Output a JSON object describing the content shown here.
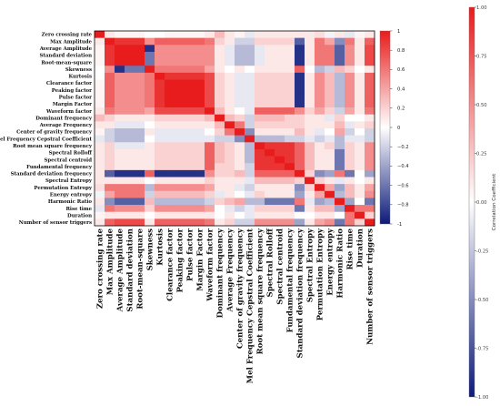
{
  "chart_data": {
    "type": "heatmap",
    "labels": [
      "Zero crossing rate",
      "Max Amplitude",
      "Average Amplitude",
      "Standard deviation",
      "Root-mean-square",
      "Skewness",
      "Kurtosis",
      "Clearance factor",
      "Peaking factor",
      "Pulse factor",
      "Margin Factor",
      "Waveform factor",
      "Dominant frequency",
      "Average Frequency",
      "Center of gravity frequency",
      "Mel Frequency Cepstral Coefficient",
      "Root mean square frequency",
      "Spectral Rolloff",
      "Spectral centroid",
      "Fundamental frequency",
      "Standard deviation frequency",
      "Spectral Entropy",
      "Permutation Entropy",
      "Energy entropy",
      "Harmonic Ratio",
      "Rise time",
      "Duration",
      "Number of sensor triggers"
    ],
    "matrix": [
      [
        1.0,
        0.1,
        0.05,
        0.05,
        0.05,
        0.0,
        0.0,
        0.05,
        0.05,
        0.05,
        0.05,
        0.1,
        0.3,
        0.1,
        0.05,
        -0.1,
        0.1,
        0.1,
        0.1,
        0.1,
        0.1,
        0.1,
        0.15,
        -0.05,
        0.1,
        -0.1,
        0.05,
        0.1
      ],
      [
        0.1,
        1.0,
        0.9,
        0.9,
        0.9,
        0.5,
        0.7,
        0.7,
        0.7,
        0.7,
        0.7,
        0.6,
        0.2,
        0.1,
        -0.2,
        -0.2,
        0.2,
        0.2,
        0.2,
        0.2,
        -0.7,
        0.1,
        0.6,
        0.4,
        -0.5,
        0.6,
        0.1,
        0.7
      ],
      [
        0.05,
        0.9,
        1.0,
        1.0,
        1.0,
        -0.9,
        0.5,
        0.5,
        0.5,
        0.5,
        0.5,
        0.5,
        0.1,
        -0.1,
        -0.3,
        -0.3,
        -0.1,
        0.1,
        0.1,
        0.1,
        -0.9,
        0.1,
        0.6,
        0.6,
        -0.7,
        0.5,
        0.1,
        0.8
      ],
      [
        0.05,
        0.9,
        1.0,
        1.0,
        1.0,
        -0.6,
        0.5,
        0.5,
        0.5,
        0.5,
        0.5,
        0.5,
        0.1,
        -0.1,
        -0.3,
        -0.3,
        -0.1,
        0.1,
        0.1,
        0.1,
        -0.9,
        0.1,
        0.6,
        0.6,
        -0.7,
        0.5,
        0.1,
        0.8
      ],
      [
        0.05,
        0.9,
        1.0,
        1.0,
        1.0,
        -0.6,
        0.5,
        0.5,
        0.5,
        0.5,
        0.5,
        0.5,
        0.1,
        -0.1,
        -0.3,
        -0.3,
        -0.1,
        0.1,
        0.1,
        0.1,
        -0.9,
        0.1,
        0.6,
        0.6,
        -0.7,
        0.5,
        0.1,
        0.8
      ],
      [
        0.0,
        0.5,
        -0.9,
        -0.6,
        -0.6,
        1.0,
        0.6,
        0.6,
        0.6,
        0.6,
        0.6,
        0.4,
        0.1,
        0.0,
        0.1,
        0.0,
        0.1,
        0.1,
        0.1,
        0.1,
        0.7,
        0.0,
        -0.3,
        -0.2,
        0.3,
        0.2,
        0.0,
        0.1
      ],
      [
        0.0,
        0.7,
        0.5,
        0.5,
        0.5,
        0.6,
        1.0,
        0.9,
        0.9,
        0.9,
        0.9,
        0.8,
        0.2,
        0.1,
        -0.1,
        -0.1,
        0.2,
        0.2,
        0.2,
        0.2,
        -0.9,
        0.1,
        0.5,
        0.3,
        -0.3,
        0.5,
        0.1,
        0.7
      ],
      [
        0.05,
        0.7,
        0.5,
        0.5,
        0.5,
        0.6,
        0.9,
        1.0,
        1.0,
        1.0,
        1.0,
        0.8,
        0.2,
        0.1,
        -0.1,
        -0.1,
        0.2,
        0.2,
        0.2,
        0.2,
        -0.9,
        0.1,
        0.5,
        0.3,
        -0.3,
        0.5,
        0.1,
        0.7
      ],
      [
        0.05,
        0.7,
        0.5,
        0.5,
        0.5,
        0.6,
        0.9,
        1.0,
        1.0,
        1.0,
        1.0,
        0.8,
        0.2,
        0.1,
        -0.1,
        -0.1,
        0.2,
        0.2,
        0.2,
        0.2,
        -0.9,
        0.1,
        0.5,
        0.3,
        -0.3,
        0.5,
        0.1,
        0.7
      ],
      [
        0.05,
        0.7,
        0.5,
        0.5,
        0.5,
        0.6,
        0.9,
        1.0,
        1.0,
        1.0,
        1.0,
        0.8,
        0.2,
        0.1,
        -0.1,
        -0.1,
        0.2,
        0.2,
        0.2,
        0.2,
        -0.9,
        0.1,
        0.5,
        0.3,
        -0.3,
        0.5,
        0.1,
        0.7
      ],
      [
        0.05,
        0.7,
        0.5,
        0.5,
        0.5,
        0.6,
        0.9,
        1.0,
        1.0,
        1.0,
        1.0,
        0.8,
        0.2,
        0.1,
        -0.1,
        -0.1,
        0.2,
        0.2,
        0.2,
        0.2,
        -0.9,
        0.1,
        0.5,
        0.3,
        -0.3,
        0.5,
        0.1,
        0.7
      ],
      [
        0.1,
        0.6,
        0.5,
        0.5,
        0.5,
        0.4,
        0.8,
        0.8,
        0.8,
        0.8,
        0.8,
        1.0,
        0.3,
        0.1,
        0.0,
        -0.1,
        0.7,
        0.7,
        0.7,
        0.7,
        0.5,
        0.2,
        0.4,
        0.2,
        -0.2,
        0.4,
        0.1,
        0.6
      ],
      [
        0.3,
        0.2,
        0.1,
        0.1,
        0.1,
        0.1,
        0.2,
        0.2,
        0.2,
        0.2,
        0.2,
        0.3,
        1.0,
        0.3,
        0.2,
        -0.2,
        0.3,
        0.3,
        0.3,
        0.2,
        0.2,
        0.1,
        0.1,
        -0.1,
        0.2,
        0.0,
        0.0,
        0.1
      ],
      [
        0.1,
        0.1,
        -0.1,
        -0.1,
        -0.1,
        0.0,
        0.1,
        0.1,
        0.1,
        0.1,
        0.1,
        0.1,
        0.3,
        1.0,
        0.6,
        -0.2,
        0.2,
        0.2,
        0.2,
        0.2,
        0.2,
        0.1,
        0.1,
        0.1,
        0.3,
        -0.1,
        0.1,
        0.2
      ],
      [
        0.05,
        -0.2,
        -0.3,
        -0.3,
        -0.3,
        0.1,
        -0.1,
        -0.1,
        -0.1,
        -0.1,
        -0.1,
        0.0,
        0.2,
        0.6,
        1.0,
        -0.5,
        0.1,
        0.1,
        0.1,
        0.1,
        0.3,
        0.1,
        -0.1,
        0.0,
        0.4,
        -0.2,
        0.0,
        -0.2
      ],
      [
        -0.1,
        -0.2,
        -0.3,
        -0.3,
        -0.3,
        0.0,
        -0.1,
        -0.1,
        -0.1,
        -0.1,
        -0.1,
        -0.1,
        -0.2,
        -0.2,
        -0.5,
        1.0,
        -0.3,
        -0.3,
        -0.3,
        -0.2,
        -0.2,
        -0.1,
        -0.2,
        -0.1,
        -0.3,
        -0.1,
        -0.1,
        -0.2
      ],
      [
        0.1,
        0.2,
        -0.1,
        -0.1,
        -0.1,
        0.1,
        0.2,
        0.2,
        0.2,
        0.2,
        0.2,
        0.7,
        0.3,
        0.2,
        0.1,
        -0.3,
        1.0,
        0.9,
        0.9,
        0.9,
        0.7,
        0.3,
        0.1,
        0.2,
        -0.3,
        0.2,
        0.1,
        0.5
      ],
      [
        0.1,
        0.2,
        0.1,
        0.1,
        0.1,
        0.1,
        0.2,
        0.2,
        0.2,
        0.2,
        0.2,
        0.7,
        0.3,
        0.2,
        0.1,
        -0.3,
        0.9,
        1.0,
        0.9,
        0.9,
        0.7,
        0.3,
        0.1,
        0.1,
        -0.6,
        0.2,
        0.1,
        0.5
      ],
      [
        0.1,
        0.2,
        0.1,
        0.1,
        0.1,
        0.1,
        0.2,
        0.2,
        0.2,
        0.2,
        0.2,
        0.7,
        0.3,
        0.2,
        0.1,
        -0.3,
        0.9,
        0.9,
        1.0,
        0.9,
        0.7,
        0.3,
        0.1,
        0.1,
        -0.6,
        0.2,
        0.1,
        0.5
      ],
      [
        0.1,
        0.2,
        0.1,
        0.1,
        0.1,
        0.1,
        0.2,
        0.2,
        0.2,
        0.2,
        0.2,
        0.7,
        0.2,
        0.2,
        0.1,
        -0.2,
        0.9,
        0.9,
        0.9,
        1.0,
        0.7,
        0.3,
        0.1,
        0.1,
        -0.6,
        0.2,
        0.1,
        0.5
      ],
      [
        0.1,
        -0.7,
        -0.9,
        -0.9,
        -0.9,
        0.7,
        -0.9,
        -0.9,
        -0.9,
        -0.9,
        -0.9,
        0.5,
        0.2,
        0.2,
        0.3,
        -0.2,
        0.7,
        0.7,
        0.7,
        0.7,
        1.0,
        0.2,
        -0.5,
        -0.4,
        0.6,
        -0.6,
        0.0,
        -0.4
      ],
      [
        0.1,
        0.1,
        0.1,
        0.1,
        0.1,
        0.0,
        0.1,
        0.1,
        0.1,
        0.1,
        0.1,
        0.2,
        0.1,
        0.1,
        0.1,
        -0.1,
        0.3,
        0.3,
        0.3,
        0.3,
        0.2,
        1.0,
        0.2,
        0.1,
        -0.1,
        0.1,
        0.0,
        0.1
      ],
      [
        0.15,
        0.6,
        0.6,
        0.6,
        0.6,
        -0.3,
        0.5,
        0.5,
        0.5,
        0.5,
        0.5,
        0.4,
        0.1,
        0.1,
        -0.1,
        -0.2,
        0.1,
        0.1,
        0.1,
        0.1,
        -0.5,
        0.2,
        1.0,
        0.4,
        -0.4,
        0.3,
        0.1,
        0.4
      ],
      [
        -0.05,
        0.4,
        0.6,
        0.6,
        0.6,
        -0.2,
        0.3,
        0.3,
        0.3,
        0.3,
        0.3,
        0.2,
        -0.1,
        0.1,
        0.0,
        -0.1,
        0.2,
        0.1,
        0.1,
        0.1,
        -0.4,
        0.1,
        0.4,
        1.0,
        -0.3,
        0.3,
        0.1,
        0.5
      ],
      [
        0.1,
        -0.5,
        -0.7,
        -0.7,
        -0.7,
        0.3,
        -0.3,
        -0.3,
        -0.3,
        -0.3,
        -0.3,
        -0.2,
        0.2,
        0.3,
        0.4,
        -0.3,
        -0.3,
        -0.6,
        -0.6,
        -0.6,
        0.6,
        -0.1,
        -0.4,
        -0.3,
        1.0,
        -0.4,
        0.0,
        -0.6
      ],
      [
        -0.1,
        0.6,
        0.5,
        0.5,
        0.5,
        0.2,
        0.5,
        0.5,
        0.5,
        0.5,
        0.5,
        0.4,
        0.0,
        -0.1,
        -0.2,
        -0.1,
        0.2,
        0.2,
        0.2,
        0.2,
        -0.6,
        0.1,
        0.3,
        0.3,
        -0.4,
        1.0,
        0.6,
        0.6
      ],
      [
        0.05,
        0.1,
        0.1,
        0.1,
        0.1,
        0.0,
        0.1,
        0.1,
        0.1,
        0.1,
        0.1,
        0.1,
        0.0,
        0.1,
        0.0,
        -0.1,
        0.1,
        0.1,
        0.1,
        0.1,
        0.0,
        0.0,
        0.1,
        0.1,
        0.0,
        0.6,
        1.0,
        0.2
      ],
      [
        0.1,
        0.7,
        0.8,
        0.8,
        0.8,
        0.1,
        0.7,
        0.7,
        0.7,
        0.7,
        0.7,
        0.6,
        0.1,
        0.2,
        -0.2,
        -0.2,
        0.5,
        0.5,
        0.5,
        0.5,
        -0.4,
        0.1,
        0.4,
        0.5,
        -0.6,
        0.6,
        0.2,
        1.0
      ]
    ],
    "colorbar_inner": {
      "range": [
        -1,
        1
      ],
      "ticks": [
        -1,
        -0.8,
        -0.6,
        -0.4,
        -0.2,
        0,
        0.2,
        0.4,
        0.6,
        0.8,
        1
      ],
      "tick_labels": [
        "-1",
        "−0.8",
        "−0.6",
        "−0.4",
        "−0.2",
        "0",
        "0.2",
        "0.4",
        "0.6",
        "0.8",
        "1"
      ]
    },
    "colorbar_outer": {
      "range": [
        -1,
        1
      ],
      "ticks": [
        -1,
        -0.75,
        -0.5,
        -0.25,
        0,
        0.25,
        0.5,
        0.75,
        1
      ],
      "tick_labels": [
        "-1.00",
        "-0.75",
        "-0.50",
        "-0.25",
        "0.00",
        "0.25",
        "0.50",
        "0.75",
        "1.00"
      ],
      "title": "Correlation Coefficient"
    },
    "colormap": {
      "low": "#0d1a7a",
      "mid": "#ffffff",
      "high": "#e81c1c"
    }
  }
}
